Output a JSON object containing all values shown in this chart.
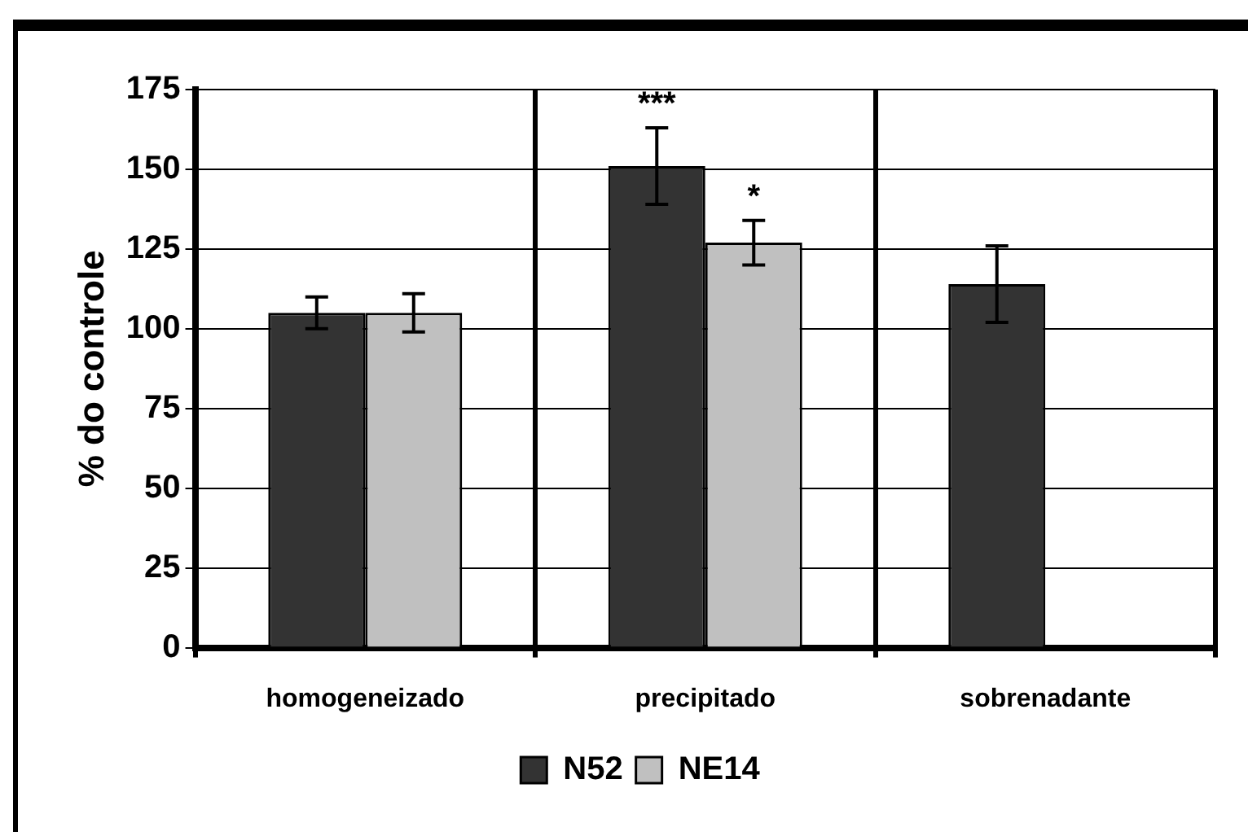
{
  "chart_data": {
    "type": "bar",
    "ylabel": "% do controle",
    "categories": [
      "homogeneizado",
      "precipitado",
      "sobrenadante"
    ],
    "series": [
      {
        "name": "N52",
        "color": "#333333",
        "values": [
          105,
          151,
          114
        ],
        "errors": [
          5,
          12,
          12
        ]
      },
      {
        "name": "NE14",
        "color": "#c0c0c0",
        "values": [
          105,
          127,
          null
        ],
        "errors": [
          6,
          7,
          null
        ]
      }
    ],
    "ylim": [
      0,
      175
    ],
    "yticks": [
      0,
      25,
      50,
      75,
      100,
      125,
      150,
      175
    ],
    "grid": true,
    "legend": "bottom",
    "annotations": [
      {
        "text": "***",
        "x": "precipitado",
        "y": 151
      },
      {
        "text": "*",
        "x": "precipitado",
        "y": 127
      }
    ]
  }
}
